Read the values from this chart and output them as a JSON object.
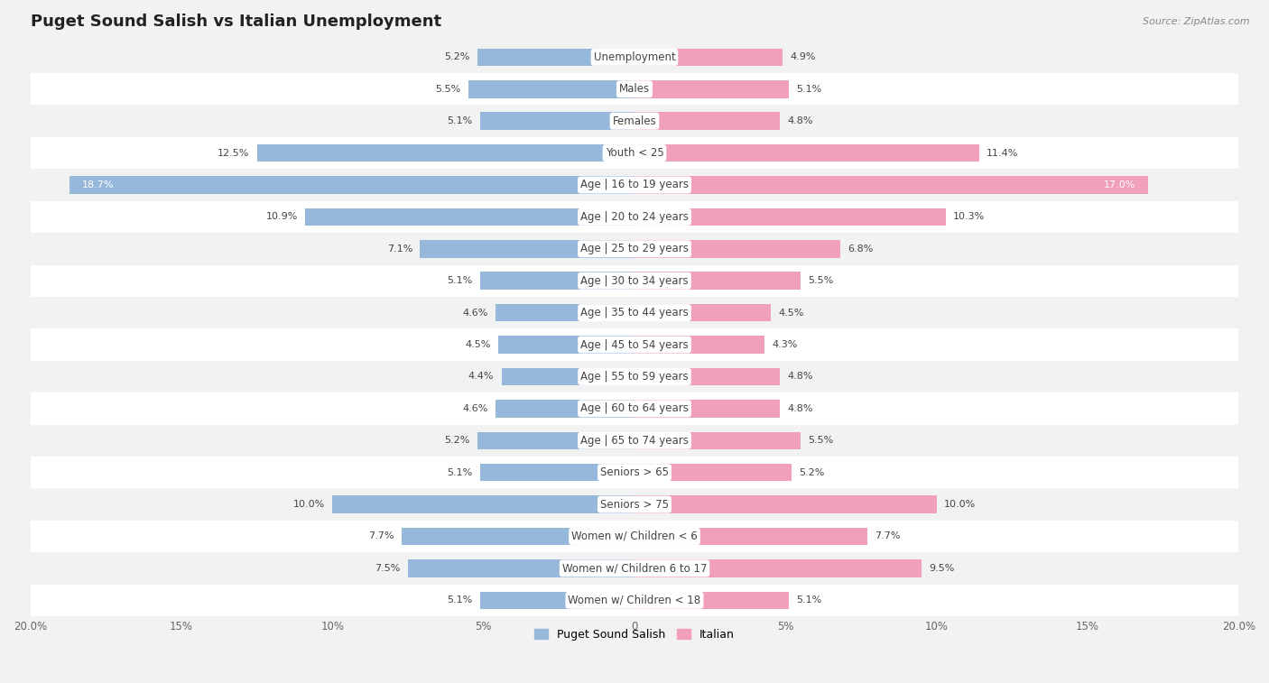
{
  "title": "Puget Sound Salish vs Italian Unemployment",
  "source": "Source: ZipAtlas.com",
  "categories": [
    "Unemployment",
    "Males",
    "Females",
    "Youth < 25",
    "Age | 16 to 19 years",
    "Age | 20 to 24 years",
    "Age | 25 to 29 years",
    "Age | 30 to 34 years",
    "Age | 35 to 44 years",
    "Age | 45 to 54 years",
    "Age | 55 to 59 years",
    "Age | 60 to 64 years",
    "Age | 65 to 74 years",
    "Seniors > 65",
    "Seniors > 75",
    "Women w/ Children < 6",
    "Women w/ Children 6 to 17",
    "Women w/ Children < 18"
  ],
  "left_values": [
    5.2,
    5.5,
    5.1,
    12.5,
    18.7,
    10.9,
    7.1,
    5.1,
    4.6,
    4.5,
    4.4,
    4.6,
    5.2,
    5.1,
    10.0,
    7.7,
    7.5,
    5.1
  ],
  "right_values": [
    4.9,
    5.1,
    4.8,
    11.4,
    17.0,
    10.3,
    6.8,
    5.5,
    4.5,
    4.3,
    4.8,
    4.8,
    5.5,
    5.2,
    10.0,
    7.7,
    9.5,
    5.1
  ],
  "left_color": "#96b8db",
  "right_color": "#f0a0b8",
  "left_label": "Puget Sound Salish",
  "right_label": "Italian",
  "x_max": 20.0,
  "row_bg_odd": "#f2f2f2",
  "row_bg_even": "#ffffff",
  "title_fontsize": 13,
  "label_fontsize": 8.5,
  "value_fontsize": 8.0,
  "tick_labels": [
    "20.0%",
    "15%",
    "10%",
    "5%",
    "0",
    "5%",
    "10%",
    "15%",
    "20.0%"
  ],
  "tick_positions": [
    -20,
    -15,
    -10,
    -5,
    0,
    5,
    10,
    15,
    20
  ]
}
